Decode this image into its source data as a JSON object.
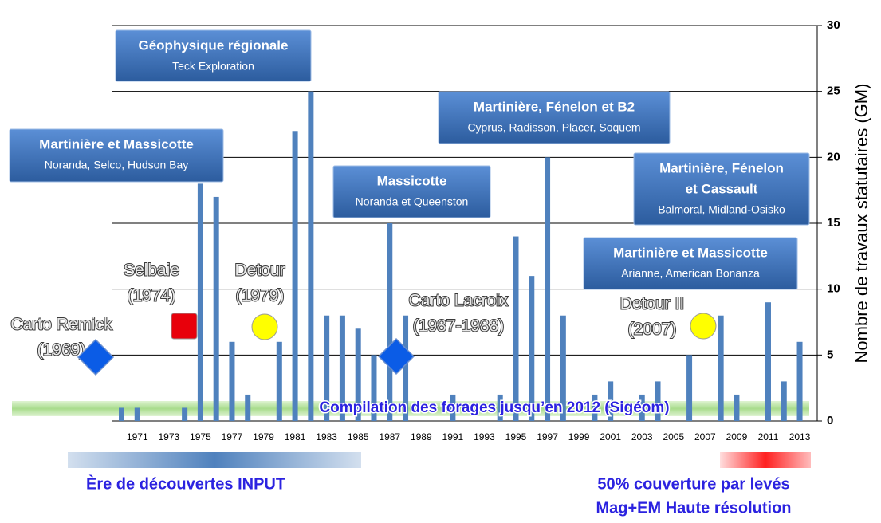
{
  "chart_data": {
    "type": "bar",
    "categories": [
      null,
      "1971",
      null,
      "1973",
      null,
      "1975",
      null,
      "1977",
      null,
      "1979",
      null,
      "1981",
      null,
      "1983",
      null,
      "1985",
      null,
      "1987",
      null,
      "1989",
      null,
      "1991",
      null,
      "1993",
      null,
      "1995",
      null,
      "1997",
      null,
      "1999",
      null,
      "2001",
      null,
      "2003",
      null,
      "2005",
      null,
      "2007",
      null,
      "2009",
      null,
      "2011",
      null,
      "2013"
    ],
    "values": [
      1,
      1,
      0,
      0,
      1,
      18,
      17,
      6,
      2,
      0,
      6,
      22,
      25,
      8,
      8,
      7,
      5,
      15,
      8,
      0,
      0,
      2,
      0,
      0,
      2,
      14,
      11,
      20,
      8,
      0,
      2,
      3,
      0,
      2,
      3,
      0,
      5,
      0,
      8,
      2,
      0,
      9,
      3,
      6
    ],
    "color": "#4f81bd",
    "ylim": [
      0,
      30
    ],
    "yticks": [
      0,
      5,
      10,
      15,
      20,
      25,
      30
    ],
    "grid": true,
    "y_axis_label": "Nombre de travaux statutaires (GM)",
    "callouts": [
      {
        "title": [
          "Géophysique régionale"
        ],
        "subtitle": "Teck Exploration"
      },
      {
        "title": [
          "Martinière et Massicotte"
        ],
        "subtitle": "Noranda, Selco, Hudson Bay"
      },
      {
        "title": [
          "Massicotte"
        ],
        "subtitle": "Noranda et Queenston"
      },
      {
        "title": [
          "Martinière, Fénelon et B2"
        ],
        "subtitle": "Cyprus, Radisson, Placer, Soquem"
      },
      {
        "title": [
          "Martinière, Fénelon",
          "et Cassault"
        ],
        "subtitle": "Balmoral, Midland-Osisko"
      },
      {
        "title": [
          "Martinière et Massicotte"
        ],
        "subtitle": "Arianne, American Bonanza"
      }
    ],
    "events": [
      {
        "label": [
          "Carto Remick",
          "(1969)"
        ],
        "marker": "diamond",
        "color": "#0b5ce6"
      },
      {
        "label": [
          "Selbaie",
          "(1974)"
        ],
        "marker": "square",
        "color": "#e8000b"
      },
      {
        "label": [
          "Detour",
          "(1979)"
        ],
        "marker": "circle",
        "color": "#ffff00"
      },
      {
        "label": [
          "Carto Lacroix",
          "(1987-1988)"
        ],
        "marker": "diamond",
        "color": "#0b5ce6"
      },
      {
        "label": [
          "Detour II",
          "(2007)"
        ],
        "marker": "circle",
        "color": "#ffff00"
      }
    ],
    "band": {
      "label": "Compilation des forages jusqu’en 2012 (Sigéom)",
      "color": "#a8dc8c"
    },
    "periods": [
      {
        "label": [
          "Ère de découvertes INPUT"
        ],
        "color": "#4f81bd"
      },
      {
        "label": [
          "50% couverture par levés",
          "Mag+EM Haute résolution"
        ],
        "color": "#ff2020"
      }
    ]
  }
}
